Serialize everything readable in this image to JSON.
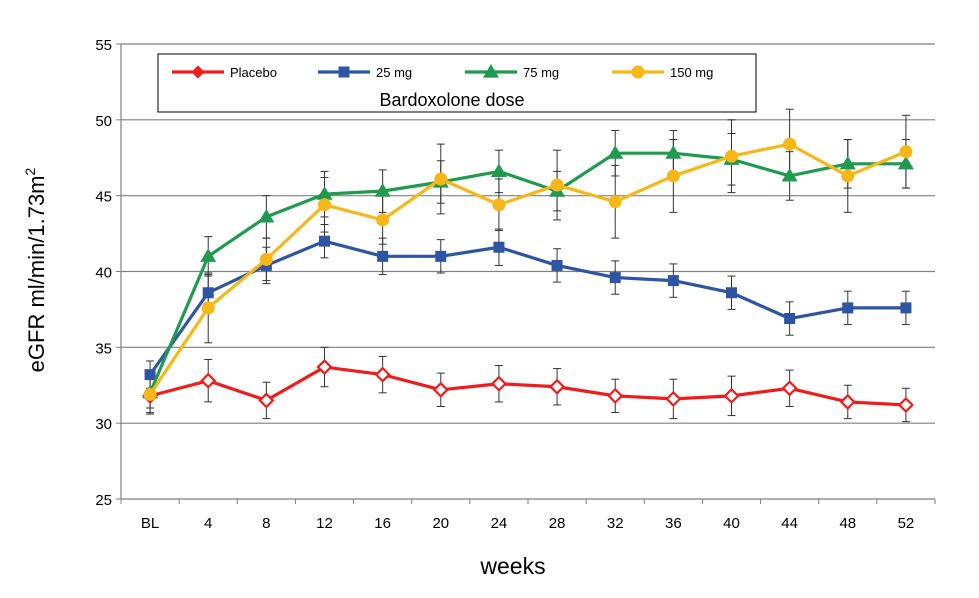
{
  "chart_data": {
    "type": "line",
    "title": "",
    "xlabel": "weeks",
    "ylabel": "eGFR ml/min/1.73m",
    "ylabel_superscript": "2",
    "categories": [
      "BL",
      "4",
      "8",
      "12",
      "16",
      "20",
      "24",
      "28",
      "32",
      "36",
      "40",
      "44",
      "48",
      "52"
    ],
    "ylim": [
      25,
      55
    ],
    "yticks": [
      "25",
      "30",
      "35",
      "40",
      "45",
      "50",
      "55"
    ],
    "grid": true,
    "legend": {
      "placement": "top-left",
      "caption": "Bardoxolone dose"
    },
    "series": [
      {
        "name": "Placebo",
        "color": "#ee1c1c",
        "marker": "diamond-open",
        "values": [
          31.8,
          32.8,
          31.5,
          33.7,
          33.2,
          32.2,
          32.6,
          32.4,
          31.8,
          31.6,
          31.8,
          32.3,
          31.4,
          31.2
        ],
        "err": [
          1.1,
          1.4,
          1.2,
          1.3,
          1.2,
          1.1,
          1.2,
          1.2,
          1.1,
          1.3,
          1.3,
          1.2,
          1.1,
          1.1
        ]
      },
      {
        "name": "25 mg",
        "color": "#2e54a4",
        "marker": "square",
        "values": [
          33.2,
          38.6,
          40.4,
          42.0,
          41.0,
          41.0,
          41.6,
          40.4,
          39.6,
          39.4,
          38.6,
          36.9,
          37.6,
          37.6
        ],
        "err": [
          0.9,
          1.2,
          1.2,
          1.1,
          1.2,
          1.1,
          1.2,
          1.1,
          1.1,
          1.1,
          1.1,
          1.1,
          1.1,
          1.1
        ]
      },
      {
        "name": "75 mg",
        "color": "#1f9a4f",
        "marker": "triangle",
        "values": [
          32.0,
          41.0,
          43.6,
          45.1,
          45.3,
          45.9,
          46.6,
          45.3,
          47.8,
          47.8,
          47.4,
          46.3,
          47.1,
          47.1
        ],
        "err": [
          1.0,
          1.3,
          1.4,
          1.5,
          1.4,
          1.4,
          1.4,
          1.3,
          1.5,
          1.5,
          1.7,
          1.6,
          1.6,
          1.6
        ]
      },
      {
        "name": "150 mg",
        "color": "#f7b718",
        "marker": "circle",
        "values": [
          31.9,
          37.6,
          40.8,
          44.4,
          43.4,
          46.1,
          44.4,
          45.7,
          44.6,
          46.3,
          47.6,
          48.4,
          46.3,
          47.9
        ],
        "err": [
          1.3,
          2.3,
          1.4,
          1.8,
          1.6,
          2.3,
          1.7,
          2.3,
          2.4,
          2.4,
          2.4,
          2.3,
          2.4,
          2.4
        ]
      }
    ]
  }
}
